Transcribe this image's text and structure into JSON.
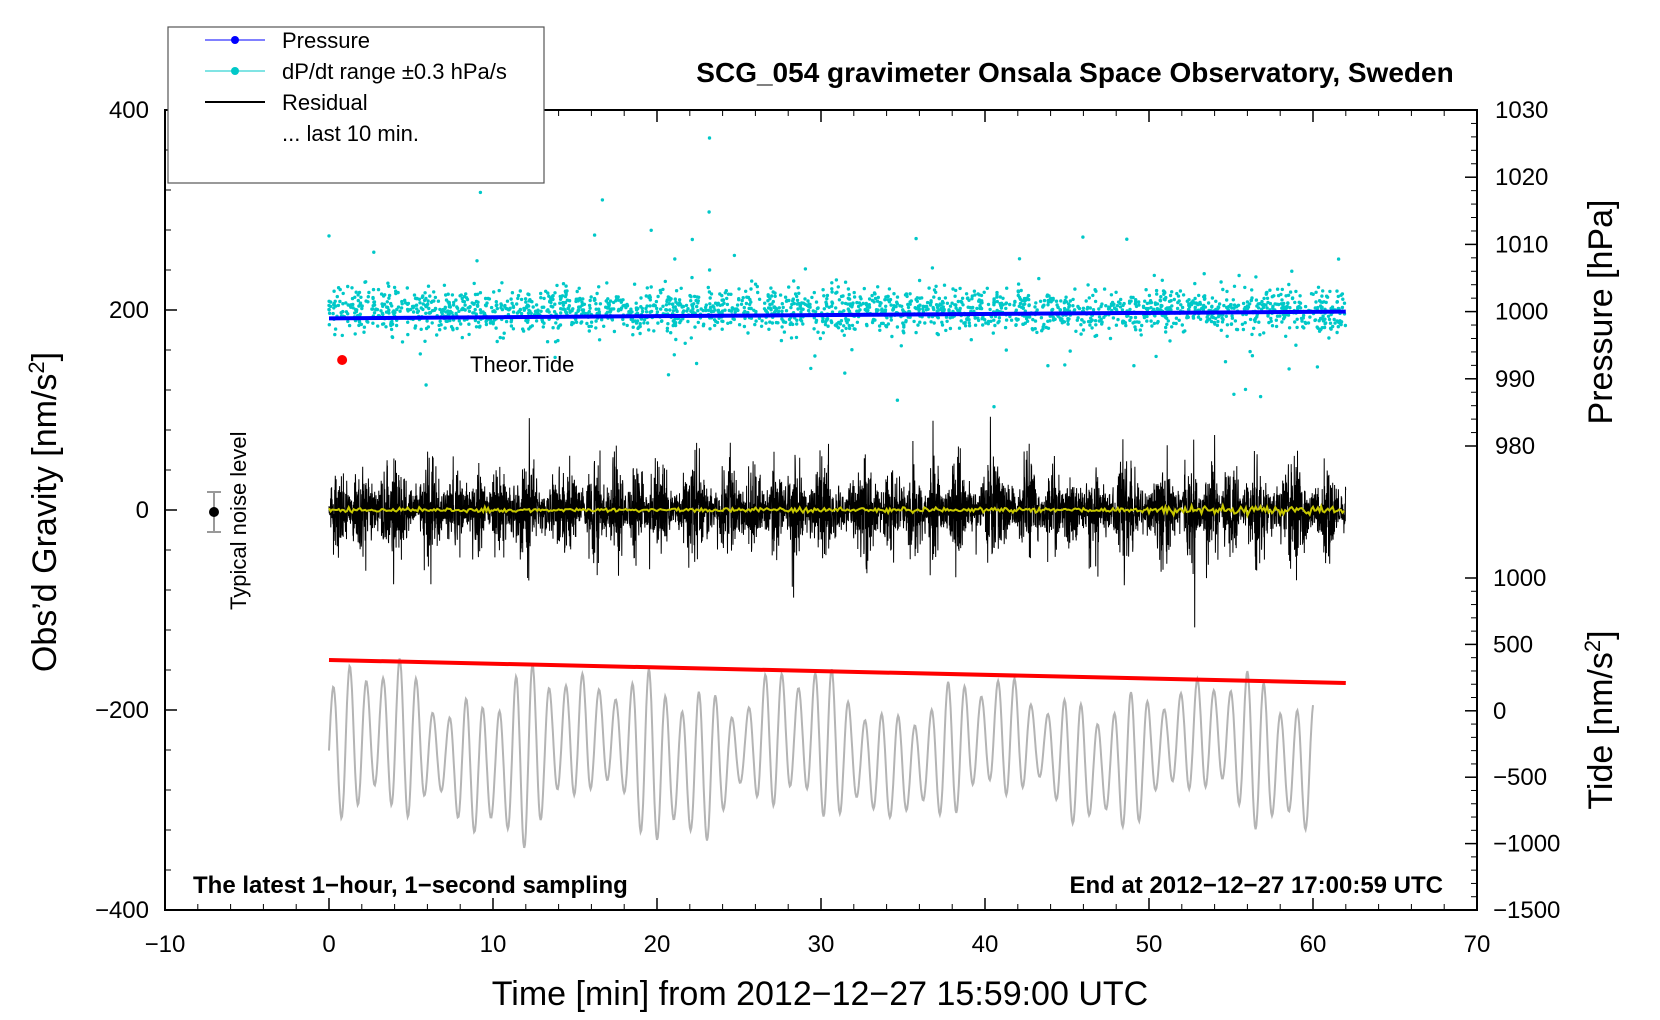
{
  "chart_data": {
    "type": "line",
    "title": "SCG_054 gravimeter Onsala Space Observatory, Sweden",
    "xlabel": "Time [min] from 2012−12−27 15:59:00 UTC",
    "ylabel_left": "Obs’d Gravity [nm/s",
    "ylabel_left_sup": "2",
    "ylabel_left_end": "]",
    "ylabel_right_top": "Pressure [hPa]",
    "ylabel_right_bottom": "Tide [nm/s",
    "ylabel_right_bottom_sup": "2",
    "ylabel_right_bottom_end": "]",
    "xlim": [
      -10,
      70
    ],
    "ylim_left": [
      -400,
      400
    ],
    "ylim_pressure": [
      980,
      1030
    ],
    "ylim_tide": [
      -1500,
      1000
    ],
    "x_ticks": [
      "−10",
      "0",
      "10",
      "20",
      "30",
      "40",
      "50",
      "60",
      "70"
    ],
    "y_ticks_left": [
      "400",
      "200",
      "0",
      "−200",
      "−400"
    ],
    "y_ticks_pressure": [
      "1030",
      "1020",
      "1010",
      "1000",
      "990",
      "980"
    ],
    "y_ticks_tide": [
      "1000",
      "500",
      "0",
      "−500",
      "−1000",
      "−1500"
    ],
    "legend": [
      {
        "label": "Pressure",
        "color": "#0000ff",
        "style": "line-dot"
      },
      {
        "label": "dP/dt range ±0.3 hPa/s",
        "color": "#00c8c8",
        "style": "line-dot"
      },
      {
        "label": "Residual",
        "color": "#000000",
        "style": "line"
      },
      {
        "label": "... last 10 min.",
        "color": "#ffffff",
        "style": "none"
      }
    ],
    "annotations": {
      "theor_tide": "Theor.Tide",
      "noise_label": "Typical noise level",
      "bottom_left": "The latest 1−hour, 1−second sampling",
      "bottom_right": "End at 2012−12−27 17:00:59 UTC"
    },
    "series": [
      {
        "name": "Pressure",
        "axis": "pressure",
        "color": "#0000ff",
        "x": [
          0,
          62
        ],
        "values": [
          999.0,
          1000.0
        ]
      },
      {
        "name": "dP/dt",
        "axis": "left",
        "color": "#00c8c8",
        "x_range": [
          0,
          62
        ],
        "center": 200,
        "spread": 15
      },
      {
        "name": "Residual",
        "axis": "left",
        "color": "#000000",
        "x_range": [
          0,
          62
        ],
        "amplitude": 100
      },
      {
        "name": "Last 10 min (yellow)",
        "axis": "left",
        "color": "#c8c800",
        "x_range": [
          0,
          62
        ],
        "center": 0
      },
      {
        "name": "Theor. Tide (red)",
        "axis": "left",
        "color": "#ff0000",
        "x": [
          0,
          62
        ],
        "values": [
          -150,
          -173
        ]
      },
      {
        "name": "Tide (gray)",
        "axis": "tide",
        "color": "#b4b4b4",
        "x_range": [
          0,
          60
        ],
        "amplitude": 700
      }
    ],
    "marker_theor_tide": {
      "x": 0.8,
      "y": 150,
      "color": "#ff0000"
    },
    "noise_bar": {
      "x": -7,
      "y": 0,
      "half_range": 20
    }
  }
}
